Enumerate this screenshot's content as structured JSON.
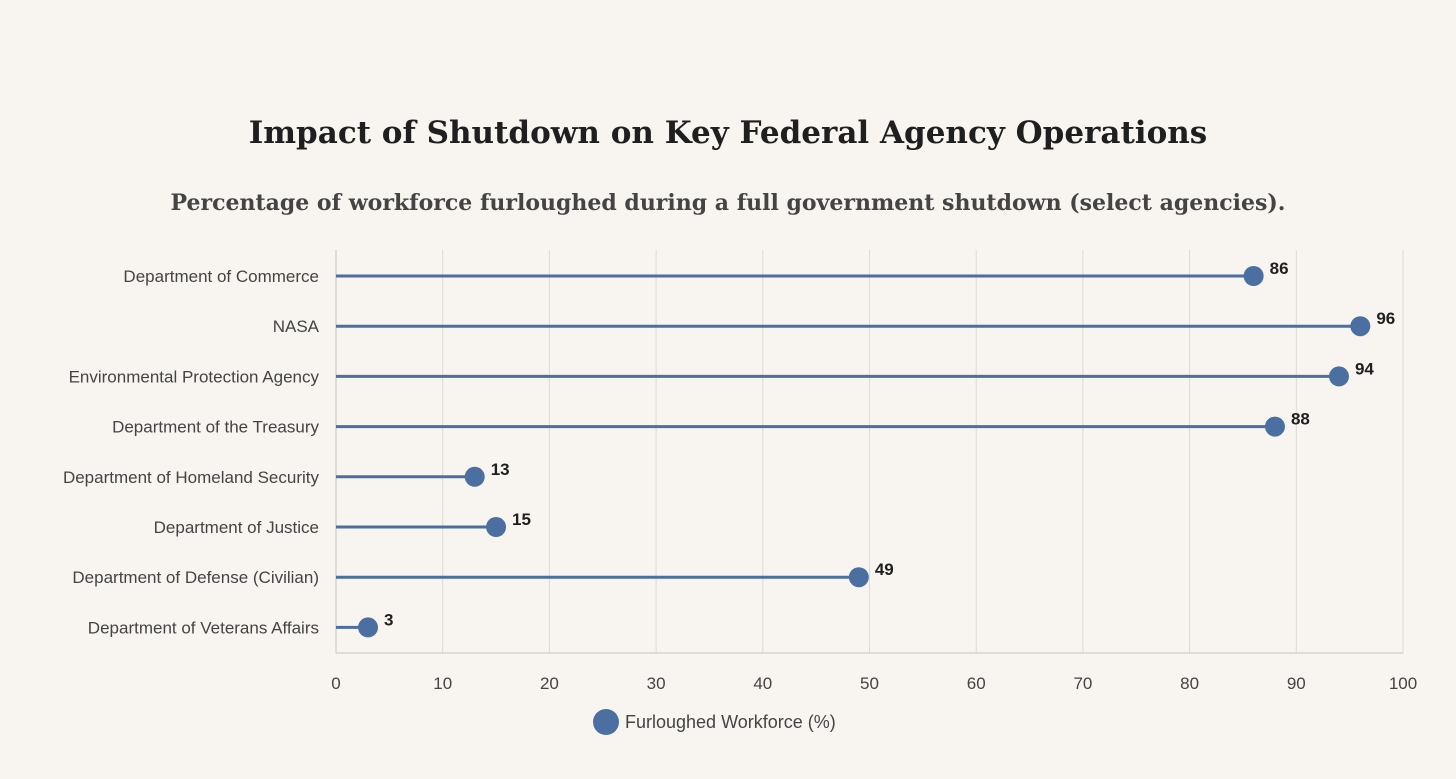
{
  "chart_data": {
    "type": "lollipop",
    "title": "Impact of Shutdown on Key Federal Agency Operations",
    "subtitle": "Percentage of workforce furloughed during a full government shutdown (select agencies).",
    "categories": [
      "Department of Commerce",
      "NASA",
      "Environmental Protection Agency",
      "Department of the Treasury",
      "Department of Homeland Security",
      "Department of Justice",
      "Department of Defense (Civilian)",
      "Department of Veterans Affairs"
    ],
    "series": [
      {
        "name": "Furloughed Workforce (%)",
        "values": [
          86,
          96,
          94,
          88,
          13,
          15,
          49,
          3
        ],
        "color": "#4a6fa0"
      }
    ],
    "xlim": [
      0,
      100
    ],
    "xticks": [
      0,
      10,
      20,
      30,
      40,
      50,
      60,
      70,
      80,
      90,
      100
    ],
    "grid": true,
    "legend_position": "bottom-center",
    "colors": {
      "background": "#f8f5f0",
      "grid": "#dedad4",
      "axis": "#c8c4be"
    }
  }
}
